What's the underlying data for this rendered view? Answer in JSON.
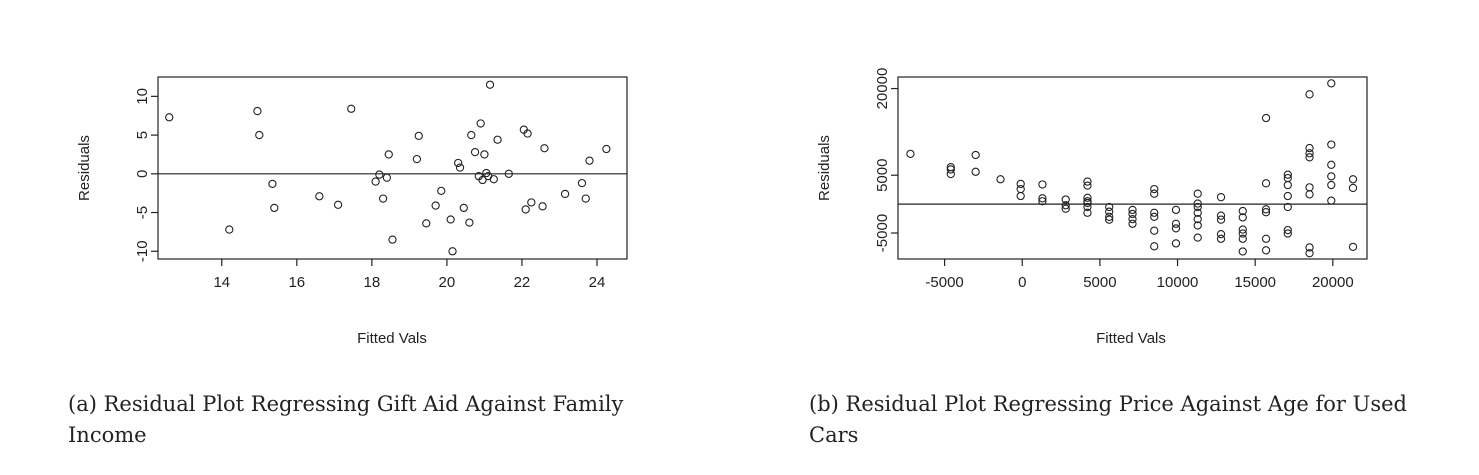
{
  "chart_data": [
    {
      "type": "scatter",
      "caption": "(a) Residual Plot Regressing Gift Aid Against Family Income",
      "xlabel": "Fitted Vals",
      "ylabel": "Residuals",
      "xlim": [
        12.3,
        24.8
      ],
      "ylim": [
        -11,
        12.5
      ],
      "xticks": [
        14,
        16,
        18,
        20,
        22,
        24
      ],
      "yticks": [
        -10,
        -5,
        0,
        5,
        10
      ],
      "reference_line_y": 0,
      "points": [
        {
          "x": 12.6,
          "y": 7.3
        },
        {
          "x": 14.2,
          "y": -7.2
        },
        {
          "x": 14.95,
          "y": 8.1
        },
        {
          "x": 15.0,
          "y": 5.0
        },
        {
          "x": 15.35,
          "y": -1.3
        },
        {
          "x": 15.4,
          "y": -4.4
        },
        {
          "x": 16.6,
          "y": -2.9
        },
        {
          "x": 17.1,
          "y": -4.0
        },
        {
          "x": 17.45,
          "y": 8.4
        },
        {
          "x": 18.1,
          "y": -1.0
        },
        {
          "x": 18.2,
          "y": -0.1
        },
        {
          "x": 18.3,
          "y": -3.2
        },
        {
          "x": 18.4,
          "y": -0.5
        },
        {
          "x": 18.45,
          "y": 2.5
        },
        {
          "x": 18.55,
          "y": -8.5
        },
        {
          "x": 19.2,
          "y": 1.9
        },
        {
          "x": 19.25,
          "y": 4.9
        },
        {
          "x": 19.45,
          "y": -6.4
        },
        {
          "x": 19.7,
          "y": -4.1
        },
        {
          "x": 19.85,
          "y": -2.2
        },
        {
          "x": 20.1,
          "y": -5.9
        },
        {
          "x": 20.15,
          "y": -10.0
        },
        {
          "x": 20.3,
          "y": 1.4
        },
        {
          "x": 20.35,
          "y": 0.8
        },
        {
          "x": 20.45,
          "y": -4.4
        },
        {
          "x": 20.6,
          "y": -6.3
        },
        {
          "x": 20.65,
          "y": 5.0
        },
        {
          "x": 20.75,
          "y": 2.8
        },
        {
          "x": 20.85,
          "y": -0.3
        },
        {
          "x": 20.9,
          "y": 6.5
        },
        {
          "x": 20.95,
          "y": -0.8
        },
        {
          "x": 21.0,
          "y": 2.5
        },
        {
          "x": 21.05,
          "y": 0.1
        },
        {
          "x": 21.1,
          "y": -0.3
        },
        {
          "x": 21.15,
          "y": 11.5
        },
        {
          "x": 21.25,
          "y": -0.7
        },
        {
          "x": 21.35,
          "y": 4.4
        },
        {
          "x": 21.65,
          "y": 0.0
        },
        {
          "x": 22.05,
          "y": 5.7
        },
        {
          "x": 22.1,
          "y": -4.6
        },
        {
          "x": 22.15,
          "y": 5.2
        },
        {
          "x": 22.25,
          "y": -3.7
        },
        {
          "x": 22.55,
          "y": -4.2
        },
        {
          "x": 22.6,
          "y": 3.3
        },
        {
          "x": 23.15,
          "y": -2.6
        },
        {
          "x": 23.6,
          "y": -1.2
        },
        {
          "x": 23.7,
          "y": -3.2
        },
        {
          "x": 23.8,
          "y": 1.7
        },
        {
          "x": 24.25,
          "y": 3.2
        }
      ]
    },
    {
      "type": "scatter",
      "caption": "(b) Residual Plot Regressing Price Against Age for Used Cars",
      "xlabel": "Fitted Vals",
      "ylabel": "Residuals",
      "xlim": [
        -8000,
        22200
      ],
      "ylim": [
        -9500,
        22000
      ],
      "xticks": [
        -5000,
        0,
        5000,
        10000,
        15000,
        20000
      ],
      "yticks": [
        -5000,
        5000,
        20000
      ],
      "reference_line_y": 0,
      "points": [
        {
          "x": -7200,
          "y": 8700
        },
        {
          "x": -4600,
          "y": 6400
        },
        {
          "x": -4600,
          "y": 6000
        },
        {
          "x": -4600,
          "y": 5200
        },
        {
          "x": -3000,
          "y": 8500
        },
        {
          "x": -3000,
          "y": 5600
        },
        {
          "x": -1400,
          "y": 4300
        },
        {
          "x": -100,
          "y": 3500
        },
        {
          "x": -100,
          "y": 2600
        },
        {
          "x": -100,
          "y": 1400
        },
        {
          "x": 1300,
          "y": 3400
        },
        {
          "x": 1300,
          "y": 1000
        },
        {
          "x": 1300,
          "y": 500
        },
        {
          "x": 2800,
          "y": 800
        },
        {
          "x": 2800,
          "y": -200
        },
        {
          "x": 2800,
          "y": -800
        },
        {
          "x": 4200,
          "y": 3900
        },
        {
          "x": 4200,
          "y": 3200
        },
        {
          "x": 4200,
          "y": 1100
        },
        {
          "x": 4200,
          "y": 500
        },
        {
          "x": 4200,
          "y": 200
        },
        {
          "x": 4200,
          "y": -500
        },
        {
          "x": 4200,
          "y": -1500
        },
        {
          "x": 5600,
          "y": -500
        },
        {
          "x": 5600,
          "y": -1300
        },
        {
          "x": 5600,
          "y": -2200
        },
        {
          "x": 5600,
          "y": -2700
        },
        {
          "x": 7100,
          "y": -1000
        },
        {
          "x": 7100,
          "y": -1700
        },
        {
          "x": 7100,
          "y": -2600
        },
        {
          "x": 7100,
          "y": -3400
        },
        {
          "x": 8500,
          "y": 2600
        },
        {
          "x": 8500,
          "y": 1800
        },
        {
          "x": 8500,
          "y": -1500
        },
        {
          "x": 8500,
          "y": -2200
        },
        {
          "x": 8500,
          "y": -4600
        },
        {
          "x": 8500,
          "y": -7300
        },
        {
          "x": 9900,
          "y": -1000
        },
        {
          "x": 9900,
          "y": -3400
        },
        {
          "x": 9900,
          "y": -4200
        },
        {
          "x": 9900,
          "y": -6800
        },
        {
          "x": 11300,
          "y": 1800
        },
        {
          "x": 11300,
          "y": 100
        },
        {
          "x": 11300,
          "y": -500
        },
        {
          "x": 11300,
          "y": -1500
        },
        {
          "x": 11300,
          "y": -2600
        },
        {
          "x": 11300,
          "y": -3700
        },
        {
          "x": 11300,
          "y": -5800
        },
        {
          "x": 12800,
          "y": 1200
        },
        {
          "x": 12800,
          "y": -2000
        },
        {
          "x": 12800,
          "y": -2700
        },
        {
          "x": 12800,
          "y": -5200
        },
        {
          "x": 12800,
          "y": -6000
        },
        {
          "x": 14200,
          "y": -1200
        },
        {
          "x": 14200,
          "y": -2300
        },
        {
          "x": 14200,
          "y": -4400
        },
        {
          "x": 14200,
          "y": -5100
        },
        {
          "x": 14200,
          "y": -6000
        },
        {
          "x": 14200,
          "y": -8200
        },
        {
          "x": 15700,
          "y": 14900
        },
        {
          "x": 15700,
          "y": 3600
        },
        {
          "x": 15700,
          "y": -900
        },
        {
          "x": 15700,
          "y": -1400
        },
        {
          "x": 15700,
          "y": -6000
        },
        {
          "x": 15700,
          "y": -8000
        },
        {
          "x": 17100,
          "y": 5100
        },
        {
          "x": 17100,
          "y": 4500
        },
        {
          "x": 17100,
          "y": 3300
        },
        {
          "x": 17100,
          "y": 1400
        },
        {
          "x": 17100,
          "y": -500
        },
        {
          "x": 17100,
          "y": -4500
        },
        {
          "x": 17100,
          "y": -5100
        },
        {
          "x": 18500,
          "y": 19000
        },
        {
          "x": 18500,
          "y": 9700
        },
        {
          "x": 18500,
          "y": 8800
        },
        {
          "x": 18500,
          "y": 8100
        },
        {
          "x": 18500,
          "y": 2900
        },
        {
          "x": 18500,
          "y": 1700
        },
        {
          "x": 18500,
          "y": -7500
        },
        {
          "x": 18500,
          "y": -8500
        },
        {
          "x": 19900,
          "y": 20900
        },
        {
          "x": 19900,
          "y": 10300
        },
        {
          "x": 19900,
          "y": 6800
        },
        {
          "x": 19900,
          "y": 4800
        },
        {
          "x": 19900,
          "y": 3300
        },
        {
          "x": 19900,
          "y": 600
        },
        {
          "x": 21300,
          "y": 4300
        },
        {
          "x": 21300,
          "y": 2800
        },
        {
          "x": 21300,
          "y": -7400
        }
      ]
    }
  ]
}
